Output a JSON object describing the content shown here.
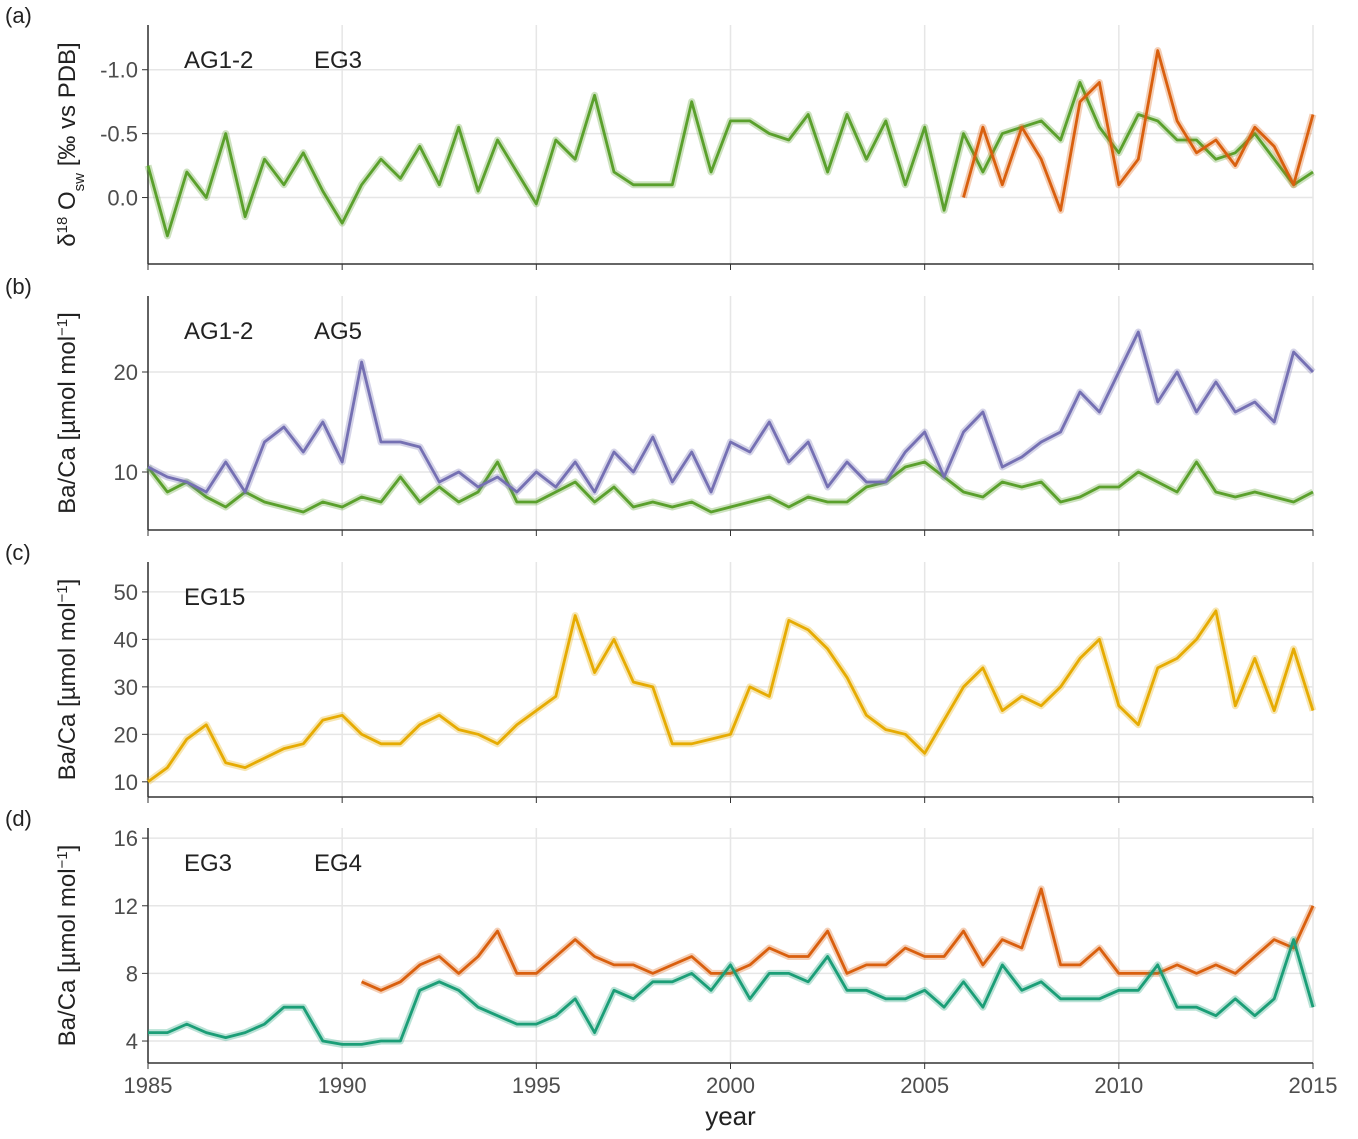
{
  "chart_data": [
    {
      "type": "line",
      "panel_label": "(a)",
      "y_label": [
        "δ",
        "18",
        " O",
        "sw",
        " [‰ vs PDB]"
      ],
      "y_label_scripts": [
        "super",
        "sub"
      ],
      "x": [
        1985,
        1985.5,
        1986,
        1986.5,
        1987,
        1987.5,
        1988,
        1988.5,
        1989,
        1989.5,
        1990,
        1990.5,
        1991,
        1991.5,
        1992,
        1992.5,
        1993,
        1993.5,
        1994,
        1994.5,
        1995,
        1995.5,
        1996,
        1996.5,
        1997,
        1997.5,
        1998,
        1998.5,
        1999,
        1999.5,
        2000,
        2000.5,
        2001,
        2001.5,
        2002,
        2002.5,
        2003,
        2003.5,
        2004,
        2004.5,
        2005,
        2005.5,
        2006,
        2006.5,
        2007,
        2007.5,
        2008,
        2008.5,
        2009,
        2009.5,
        2010,
        2010.5,
        2011,
        2011.5,
        2012,
        2012.5,
        2013,
        2013.5,
        2014,
        2014.5,
        2015
      ],
      "series": [
        {
          "name": "AG1-2",
          "color": "#5aa02c",
          "values": [
            -0.25,
            0.3,
            -0.2,
            0.0,
            -0.5,
            0.15,
            -0.3,
            -0.1,
            -0.35,
            -0.05,
            0.2,
            -0.1,
            -0.3,
            -0.15,
            -0.4,
            -0.1,
            -0.55,
            -0.05,
            -0.45,
            -0.2,
            0.05,
            -0.45,
            -0.3,
            -0.8,
            -0.2,
            -0.1,
            -0.1,
            -0.1,
            -0.75,
            -0.2,
            -0.6,
            -0.6,
            -0.5,
            -0.45,
            -0.65,
            -0.2,
            -0.65,
            -0.3,
            -0.6,
            -0.1,
            -0.55,
            0.1,
            -0.5,
            -0.2,
            -0.5,
            -0.55,
            -0.6,
            -0.45,
            -0.9,
            -0.55,
            -0.35,
            -0.65,
            -0.6,
            -0.45,
            -0.45,
            -0.3,
            -0.35,
            -0.5,
            -0.3,
            -0.1,
            -0.2
          ]
        },
        {
          "name": "EG3",
          "color": "#d95f0e",
          "values": [
            null,
            null,
            null,
            null,
            null,
            null,
            null,
            null,
            null,
            null,
            null,
            null,
            null,
            null,
            null,
            null,
            null,
            null,
            null,
            null,
            null,
            null,
            null,
            null,
            null,
            null,
            null,
            null,
            null,
            null,
            null,
            null,
            null,
            null,
            null,
            null,
            null,
            null,
            null,
            null,
            null,
            null,
            0.0,
            -0.55,
            -0.1,
            -0.55,
            -0.3,
            0.1,
            -0.75,
            -0.9,
            -0.1,
            -0.3,
            -1.15,
            -0.6,
            -0.35,
            -0.45,
            -0.25,
            -0.55,
            -0.4,
            -0.1,
            -0.65
          ]
        }
      ],
      "ylim": [
        0.52,
        -1.35
      ],
      "yticks": [
        {
          "value": -1,
          "label": "-1.0"
        },
        {
          "value": -0.5,
          "label": "-0.5"
        },
        {
          "value": 0,
          "label": "0.0"
        }
      ]
    },
    {
      "type": "line",
      "panel_label": "(b)",
      "y_label": [
        "Ba/Ca [µmol  mol",
        "−1",
        "]"
      ],
      "y_label_scripts": [
        "super"
      ],
      "x": [
        1985,
        1985.5,
        1986,
        1986.5,
        1987,
        1987.5,
        1988,
        1988.5,
        1989,
        1989.5,
        1990,
        1990.5,
        1991,
        1991.5,
        1992,
        1992.5,
        1993,
        1993.5,
        1994,
        1994.5,
        1995,
        1995.5,
        1996,
        1996.5,
        1997,
        1997.5,
        1998,
        1998.5,
        1999,
        1999.5,
        2000,
        2000.5,
        2001,
        2001.5,
        2002,
        2002.5,
        2003,
        2003.5,
        2004,
        2004.5,
        2005,
        2005.5,
        2006,
        2006.5,
        2007,
        2007.5,
        2008,
        2008.5,
        2009,
        2009.5,
        2010,
        2010.5,
        2011,
        2011.5,
        2012,
        2012.5,
        2013,
        2013.5,
        2014,
        2014.5,
        2015
      ],
      "series": [
        {
          "name": "AG1-2",
          "color": "#5aa02c",
          "values": [
            10.5,
            8,
            9,
            7.5,
            6.5,
            8,
            7,
            6.5,
            6,
            7,
            6.5,
            7.5,
            7,
            9.5,
            7,
            8.5,
            7,
            8,
            11,
            7,
            7,
            8,
            9,
            7,
            8.5,
            6.5,
            7,
            6.5,
            7,
            6,
            6.5,
            7,
            7.5,
            6.5,
            7.5,
            7,
            7,
            8.5,
            9,
            10.5,
            11,
            9.5,
            8,
            7.5,
            9,
            8.5,
            9,
            7,
            7.5,
            8.5,
            8.5,
            10,
            9,
            8,
            11,
            8,
            7.5,
            8,
            7.5,
            7,
            8
          ]
        },
        {
          "name": "AG5",
          "color": "#7570b3",
          "values": [
            10.5,
            9.5,
            9,
            8,
            11,
            8,
            13,
            14.5,
            12,
            15,
            11,
            21,
            13,
            13,
            12.5,
            9,
            10,
            8.5,
            9.5,
            8,
            10,
            8.5,
            11,
            8,
            12,
            10,
            13.5,
            9,
            12,
            8,
            13,
            12,
            15,
            11,
            13,
            8.5,
            11,
            9,
            9,
            12,
            14,
            9.5,
            14,
            16,
            10.5,
            11.5,
            13,
            14,
            18,
            16,
            20,
            24,
            17,
            20,
            16,
            19,
            16,
            17,
            15,
            22,
            20
          ]
        }
      ],
      "ylim": [
        4.2,
        27.6
      ],
      "yticks": [
        10,
        20
      ]
    },
    {
      "type": "line",
      "panel_label": "(c)",
      "y_label": [
        "Ba/Ca [µmol  mol",
        "−1",
        "]"
      ],
      "y_label_scripts": [
        "super"
      ],
      "x": [
        1985,
        1985.5,
        1986,
        1986.5,
        1987,
        1987.5,
        1988,
        1988.5,
        1989,
        1989.5,
        1990,
        1990.5,
        1991,
        1991.5,
        1992,
        1992.5,
        1993,
        1993.5,
        1994,
        1994.5,
        1995,
        1995.5,
        1996,
        1996.5,
        1997,
        1997.5,
        1998,
        1998.5,
        1999,
        1999.5,
        2000,
        2000.5,
        2001,
        2001.5,
        2002,
        2002.5,
        2003,
        2003.5,
        2004,
        2004.5,
        2005,
        2005.5,
        2006,
        2006.5,
        2007,
        2007.5,
        2008,
        2008.5,
        2009,
        2009.5,
        2010,
        2010.5,
        2011,
        2011.5,
        2012,
        2012.5,
        2013,
        2013.5,
        2014,
        2014.5,
        2015
      ],
      "series": [
        {
          "name": "EG15",
          "color": "#e6ab02",
          "values": [
            10,
            13,
            19,
            22,
            14,
            13,
            15,
            17,
            18,
            23,
            24,
            20,
            18,
            18,
            22,
            24,
            21,
            20,
            18,
            22,
            25,
            28,
            45,
            33,
            40,
            31,
            30,
            18,
            18,
            19,
            20,
            30,
            28,
            44,
            42,
            38,
            32,
            24,
            21,
            20,
            16,
            23,
            30,
            34,
            25,
            28,
            26,
            30,
            36,
            40,
            26,
            22,
            34,
            36,
            40,
            46,
            26,
            36,
            25,
            38,
            25
          ]
        }
      ],
      "ylim": [
        6.8,
        56.3
      ],
      "yticks": [
        10,
        20,
        30,
        40,
        50
      ]
    },
    {
      "type": "line",
      "panel_label": "(d)",
      "y_label": [
        "Ba/Ca [µmol  mol",
        "−1",
        "]"
      ],
      "y_label_scripts": [
        "super"
      ],
      "x_label": "year",
      "x": [
        1985,
        1985.5,
        1986,
        1986.5,
        1987,
        1987.5,
        1988,
        1988.5,
        1989,
        1989.5,
        1990,
        1990.5,
        1991,
        1991.5,
        1992,
        1992.5,
        1993,
        1993.5,
        1994,
        1994.5,
        1995,
        1995.5,
        1996,
        1996.5,
        1997,
        1997.5,
        1998,
        1998.5,
        1999,
        1999.5,
        2000,
        2000.5,
        2001,
        2001.5,
        2002,
        2002.5,
        2003,
        2003.5,
        2004,
        2004.5,
        2005,
        2005.5,
        2006,
        2006.5,
        2007,
        2007.5,
        2008,
        2008.5,
        2009,
        2009.5,
        2010,
        2010.5,
        2011,
        2011.5,
        2012,
        2012.5,
        2013,
        2013.5,
        2014,
        2014.5,
        2015
      ],
      "series": [
        {
          "name": "EG3",
          "color": "#d95f0e",
          "values": [
            null,
            null,
            null,
            null,
            null,
            null,
            null,
            null,
            null,
            null,
            null,
            7.5,
            7,
            7.5,
            8.5,
            9,
            8,
            9,
            10.5,
            8,
            8,
            9,
            10,
            9,
            8.5,
            8.5,
            8,
            8.5,
            9,
            8,
            8,
            8.5,
            9.5,
            9,
            9,
            10.5,
            8,
            8.5,
            8.5,
            9.5,
            9,
            9,
            10.5,
            8.5,
            10,
            9.5,
            13,
            8.5,
            8.5,
            9.5,
            8,
            8,
            8,
            8.5,
            8,
            8.5,
            8,
            9,
            10,
            9.5,
            12
          ]
        },
        {
          "name": "EG4",
          "color": "#1b9e77",
          "values": [
            4.5,
            4.5,
            5,
            4.5,
            4.2,
            4.5,
            5,
            6,
            6,
            4,
            3.8,
            3.8,
            4,
            4,
            7,
            7.5,
            7,
            6,
            5.5,
            5,
            5,
            5.5,
            6.5,
            4.5,
            7,
            6.5,
            7.5,
            7.5,
            8,
            7,
            8.5,
            6.5,
            8,
            8,
            7.5,
            9,
            7,
            7,
            6.5,
            6.5,
            7,
            6,
            7.5,
            6,
            8.5,
            7,
            7.5,
            6.5,
            6.5,
            6.5,
            7,
            7,
            8.5,
            6,
            6,
            5.5,
            6.5,
            5.5,
            6.5,
            10,
            6
          ]
        }
      ],
      "ylim": [
        2.7,
        16.6
      ],
      "yticks": [
        4,
        8,
        12,
        16
      ],
      "xlim": [
        1985,
        2015
      ],
      "xticks": [
        1985,
        1990,
        1995,
        2000,
        2005,
        2010,
        2015
      ]
    }
  ]
}
